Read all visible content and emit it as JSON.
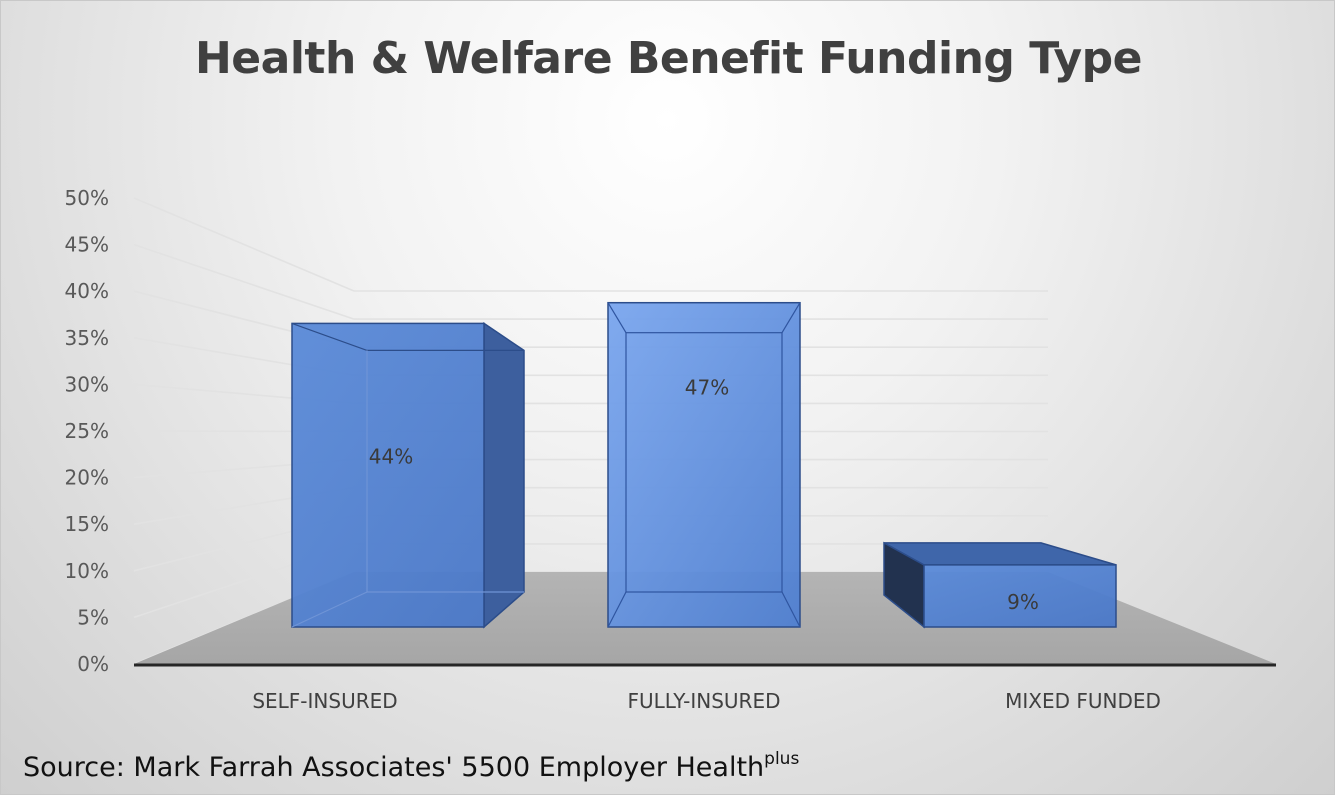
{
  "chart_data": {
    "type": "bar",
    "title": "Health & Welfare Benefit Funding Type",
    "categories": [
      "SELF-INSURED",
      "FULLY-INSURED",
      "MIXED FUNDED"
    ],
    "values": [
      44,
      47,
      9
    ],
    "data_labels": [
      "44%",
      "47%",
      "9%"
    ],
    "ylim": [
      0,
      50
    ],
    "y_ticks": [
      "0%",
      "5%",
      "10%",
      "15%",
      "20%",
      "25%",
      "30%",
      "35%",
      "40%",
      "45%",
      "50%"
    ],
    "grid": true,
    "three_d": true,
    "bar_color": "#4f7fd0"
  },
  "footer": {
    "source_text": "Source:  Mark Farrah Associates' 5500 Employer Health",
    "source_superscript": "plus"
  }
}
